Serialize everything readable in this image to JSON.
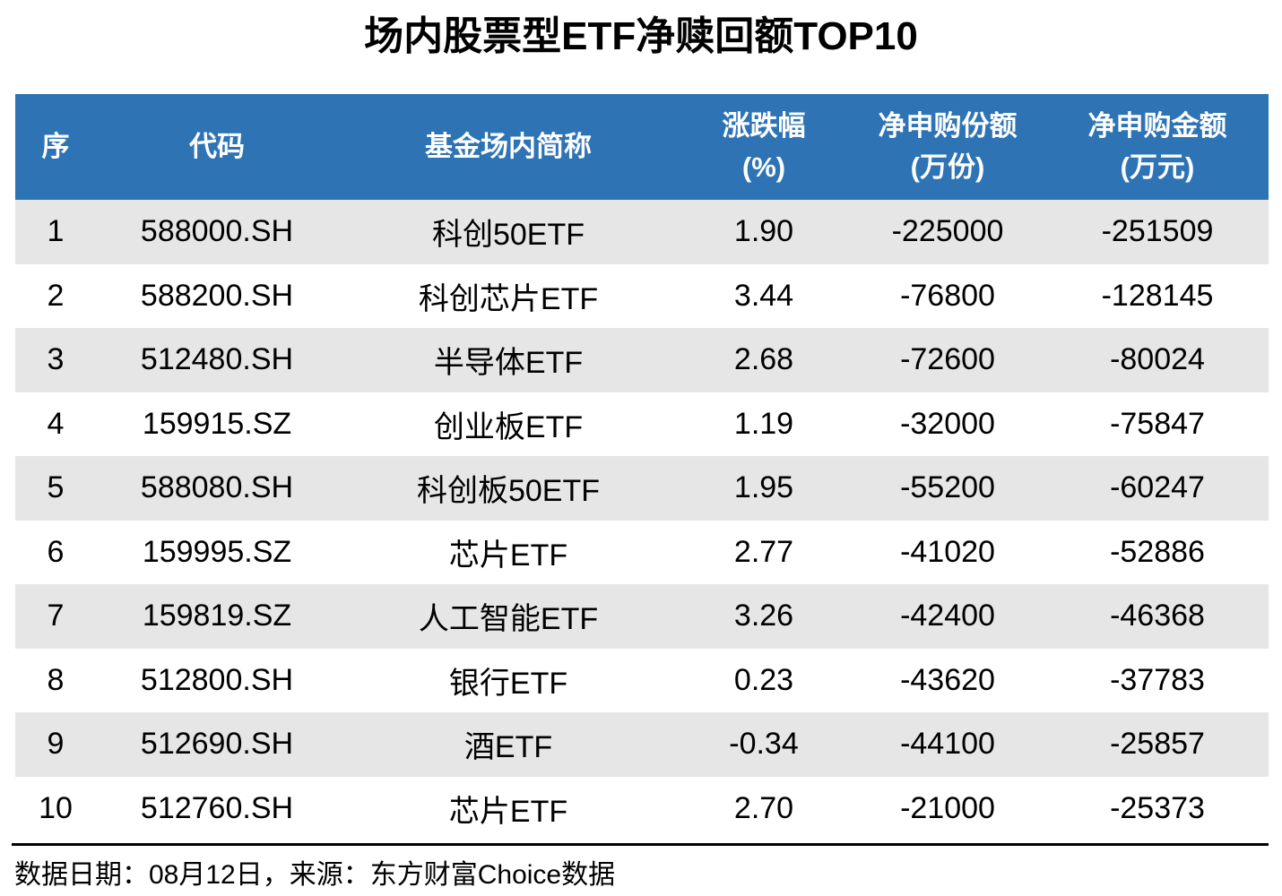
{
  "page": {
    "title": "场内股票型ETF净赎回额TOP10",
    "source_note": "数据日期：08月12日，来源：东方财富Choice数据"
  },
  "colors": {
    "header_bg": "#2E74B5",
    "header_text": "#FFFFFF",
    "alt_row_bg": "#E6E6E6",
    "body_text": "#000000"
  },
  "chart_data": {
    "type": "table",
    "title": "场内股票型ETF净赎回额TOP10",
    "columns": [
      {
        "label": "序",
        "unit": ""
      },
      {
        "label": "代码",
        "unit": ""
      },
      {
        "label": "基金场内简称",
        "unit": ""
      },
      {
        "label": "涨跌幅",
        "unit": "(%)"
      },
      {
        "label": "净申购份额",
        "unit": "(万份)"
      },
      {
        "label": "净申购金额",
        "unit": "(万元)"
      }
    ],
    "column_keys": [
      "rank",
      "code",
      "name",
      "change_pct",
      "net_subscription_shares",
      "net_subscription_amount"
    ],
    "rows": [
      {
        "rank": "1",
        "code": "588000.SH",
        "name": "科创50ETF",
        "change_pct": "1.90",
        "net_subscription_shares": "-225000",
        "net_subscription_amount": "-251509"
      },
      {
        "rank": "2",
        "code": "588200.SH",
        "name": "科创芯片ETF",
        "change_pct": "3.44",
        "net_subscription_shares": "-76800",
        "net_subscription_amount": "-128145"
      },
      {
        "rank": "3",
        "code": "512480.SH",
        "name": "半导体ETF",
        "change_pct": "2.68",
        "net_subscription_shares": "-72600",
        "net_subscription_amount": "-80024"
      },
      {
        "rank": "4",
        "code": "159915.SZ",
        "name": "创业板ETF",
        "change_pct": "1.19",
        "net_subscription_shares": "-32000",
        "net_subscription_amount": "-75847"
      },
      {
        "rank": "5",
        "code": "588080.SH",
        "name": "科创板50ETF",
        "change_pct": "1.95",
        "net_subscription_shares": "-55200",
        "net_subscription_amount": "-60247"
      },
      {
        "rank": "6",
        "code": "159995.SZ",
        "name": "芯片ETF",
        "change_pct": "2.77",
        "net_subscription_shares": "-41020",
        "net_subscription_amount": "-52886"
      },
      {
        "rank": "7",
        "code": "159819.SZ",
        "name": "人工智能ETF",
        "change_pct": "3.26",
        "net_subscription_shares": "-42400",
        "net_subscription_amount": "-46368"
      },
      {
        "rank": "8",
        "code": "512800.SH",
        "name": "银行ETF",
        "change_pct": "0.23",
        "net_subscription_shares": "-43620",
        "net_subscription_amount": "-37783"
      },
      {
        "rank": "9",
        "code": "512690.SH",
        "name": "酒ETF",
        "change_pct": "-0.34",
        "net_subscription_shares": "-44100",
        "net_subscription_amount": "-25857"
      },
      {
        "rank": "10",
        "code": "512760.SH",
        "name": "芯片ETF",
        "change_pct": "2.70",
        "net_subscription_shares": "-21000",
        "net_subscription_amount": "-25373"
      }
    ],
    "source_note": "数据日期：08月12日，来源：东方财富Choice数据"
  }
}
